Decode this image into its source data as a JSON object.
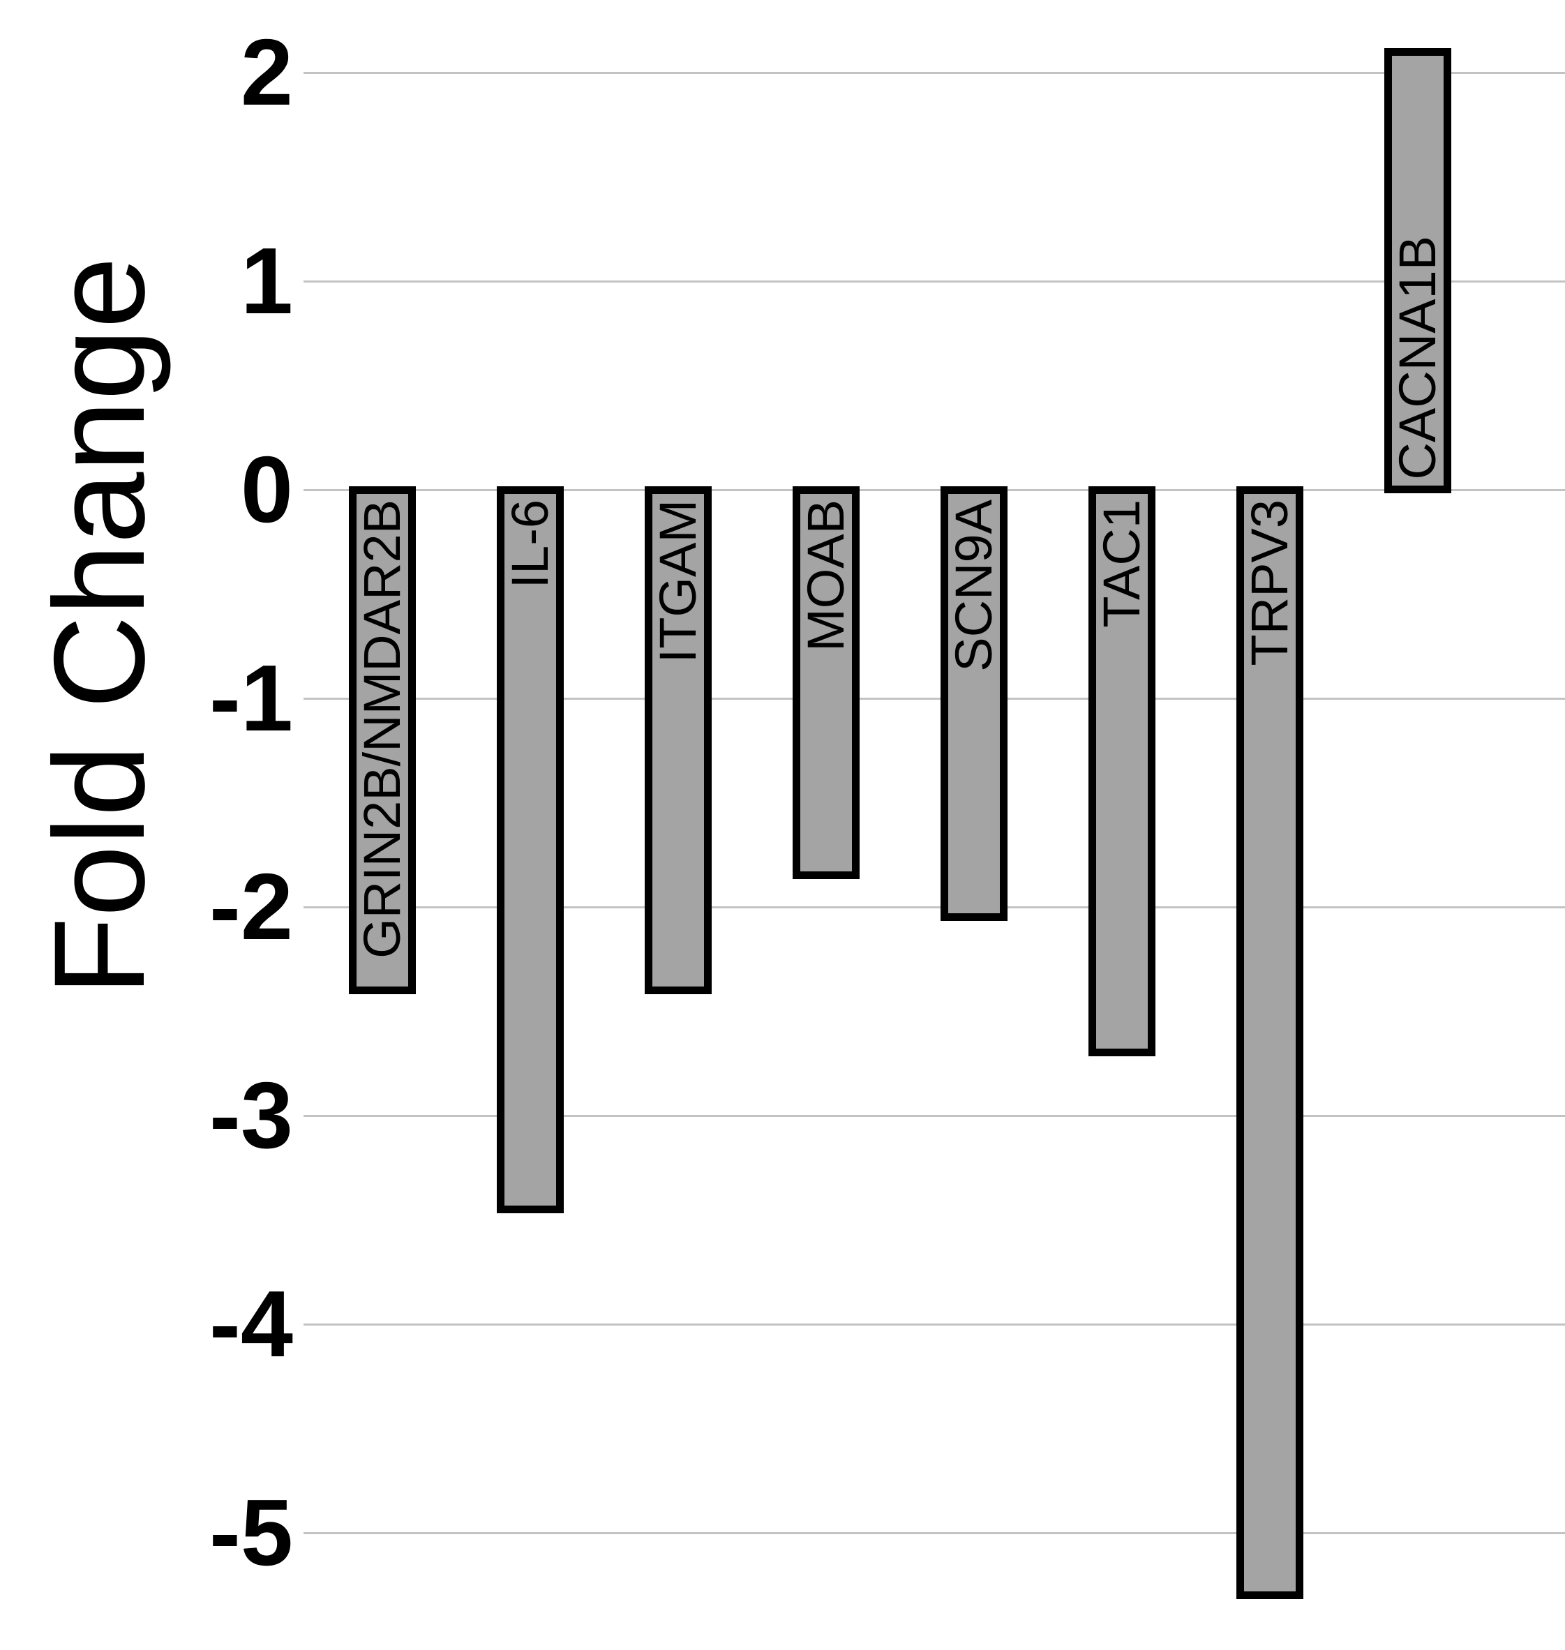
{
  "chart_data": {
    "type": "bar",
    "title": "",
    "xlabel": "",
    "ylabel": "Fold Change",
    "categories": [
      "GRIN2B/NMDAR2B",
      "IL-6",
      "ITGAM",
      "MOAB",
      "SCN9A",
      "TAC1",
      "TRPV3",
      "CACNA1B"
    ],
    "values": [
      -2.4,
      -3.45,
      -2.4,
      -1.85,
      -2.05,
      -2.7,
      -5.3,
      2.1
    ],
    "series": [
      {
        "name": "Fold Change",
        "values": [
          -2.4,
          -3.45,
          -2.4,
          -1.85,
          -2.05,
          -2.7,
          -5.3,
          2.1
        ]
      }
    ],
    "y_ticks": [
      "2",
      "1",
      "0",
      "-1",
      "-2",
      "-3",
      "-4",
      "-5"
    ],
    "y_tick_values": [
      2,
      1,
      0,
      -1,
      -2,
      -3,
      -4,
      -5
    ],
    "ylim": [
      -5.56,
      2.35
    ],
    "grid": "horizontal-only",
    "legend": "none",
    "bar_labels": "inside-bar-rotated-90-ccw-anchored-at-zero-baseline",
    "orientation": "vertical-bars-from-zero-baseline",
    "colors": {
      "bar_fill": "#a4a4a4",
      "bar_border": "#000000",
      "gridline": "#c3c3c3",
      "background": "#ffffff",
      "text": "#000000"
    }
  }
}
